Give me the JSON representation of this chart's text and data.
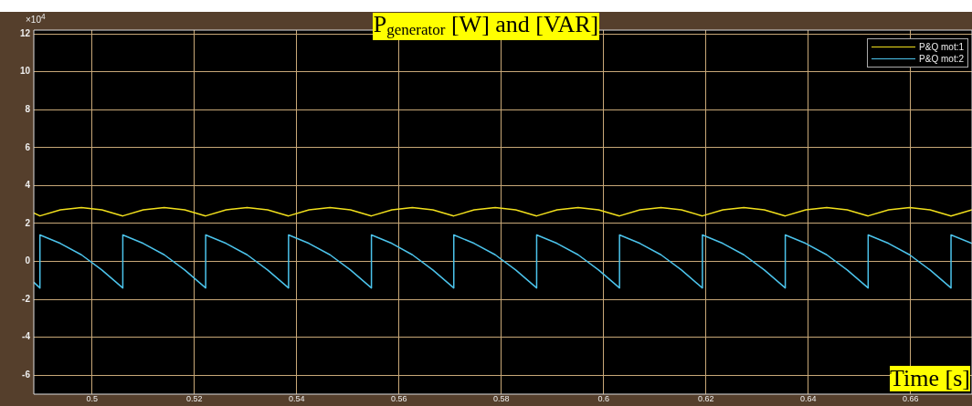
{
  "chart_data": {
    "type": "line",
    "title": "P$_{generator}$ [W] and [VAR]",
    "xlabel": "Time [s]",
    "annotations": [
      "×10$^{4}$"
    ],
    "xlim": [
      0.4886,
      0.672
    ],
    "xticks": [
      0.5,
      0.52,
      0.54,
      0.56,
      0.58,
      0.6,
      0.62,
      0.64,
      0.66
    ],
    "ylim": [
      -7,
      12.2
    ],
    "yticks": [
      -6,
      -4,
      -2,
      0,
      2,
      4,
      6,
      8,
      10,
      12
    ],
    "grid": true,
    "legend": "top right",
    "marker": "none",
    "line_style": "solid",
    "series": [
      {
        "name": "P&Q mot:1",
        "color": "#f2e01c",
        "x": [
          0.4886,
          0.4898,
          0.4938,
          0.4979,
          0.5019,
          0.506,
          0.51,
          0.5141,
          0.5181,
          0.5222,
          0.5262,
          0.5303,
          0.5343,
          0.5384,
          0.5424,
          0.5465,
          0.5505,
          0.5546,
          0.5586,
          0.5626,
          0.5666,
          0.5707,
          0.5747,
          0.5788,
          0.5828,
          0.5869,
          0.5909,
          0.595,
          0.599,
          0.6031,
          0.6071,
          0.6112,
          0.6152,
          0.6193,
          0.6233,
          0.6274,
          0.6314,
          0.6355,
          0.6395,
          0.6436,
          0.6476,
          0.6517,
          0.6557,
          0.6598,
          0.6638,
          0.6679,
          0.672
        ],
        "values": [
          2.55,
          2.4,
          2.72,
          2.84,
          2.72,
          2.4,
          2.72,
          2.84,
          2.72,
          2.4,
          2.72,
          2.84,
          2.72,
          2.4,
          2.72,
          2.84,
          2.72,
          2.4,
          2.72,
          2.84,
          2.72,
          2.4,
          2.72,
          2.84,
          2.72,
          2.4,
          2.72,
          2.84,
          2.72,
          2.4,
          2.72,
          2.84,
          2.72,
          2.4,
          2.72,
          2.84,
          2.72,
          2.4,
          2.72,
          2.84,
          2.72,
          2.4,
          2.72,
          2.84,
          2.72,
          2.4,
          2.72
        ]
      },
      {
        "name": "P&Q mot:2",
        "color": "#4cc4ec",
        "x": [
          0.4886,
          0.4898,
          0.4898,
          0.4938,
          0.4979,
          0.5019,
          0.506,
          0.506,
          0.51,
          0.5141,
          0.5181,
          0.5222,
          0.5222,
          0.5262,
          0.5303,
          0.5343,
          0.5384,
          0.5384,
          0.5424,
          0.5465,
          0.5505,
          0.5546,
          0.5546,
          0.5586,
          0.5626,
          0.5666,
          0.5707,
          0.5707,
          0.5747,
          0.5788,
          0.5828,
          0.5869,
          0.5869,
          0.5909,
          0.595,
          0.599,
          0.6031,
          0.6031,
          0.6071,
          0.6112,
          0.6152,
          0.6193,
          0.6193,
          0.6233,
          0.6274,
          0.6314,
          0.6355,
          0.6355,
          0.6395,
          0.6436,
          0.6476,
          0.6517,
          0.6517,
          0.6557,
          0.6598,
          0.6638,
          0.6679,
          0.6679,
          0.672
        ],
        "values": [
          -1.1,
          -1.4,
          1.4,
          0.95,
          0.35,
          -0.45,
          -1.4,
          1.4,
          0.95,
          0.35,
          -0.45,
          -1.4,
          1.4,
          0.95,
          0.35,
          -0.45,
          -1.4,
          1.4,
          0.95,
          0.35,
          -0.45,
          -1.4,
          1.4,
          0.95,
          0.35,
          -0.45,
          -1.4,
          1.4,
          0.95,
          0.35,
          -0.45,
          -1.4,
          1.4,
          0.95,
          0.35,
          -0.45,
          -1.4,
          1.4,
          0.95,
          0.35,
          -0.45,
          -1.4,
          1.4,
          0.95,
          0.35,
          -0.45,
          -1.4,
          1.4,
          0.95,
          0.35,
          -0.45,
          -1.4,
          1.4,
          0.95,
          0.35,
          -0.45,
          -1.4,
          1.4,
          0.95
        ]
      }
    ]
  }
}
